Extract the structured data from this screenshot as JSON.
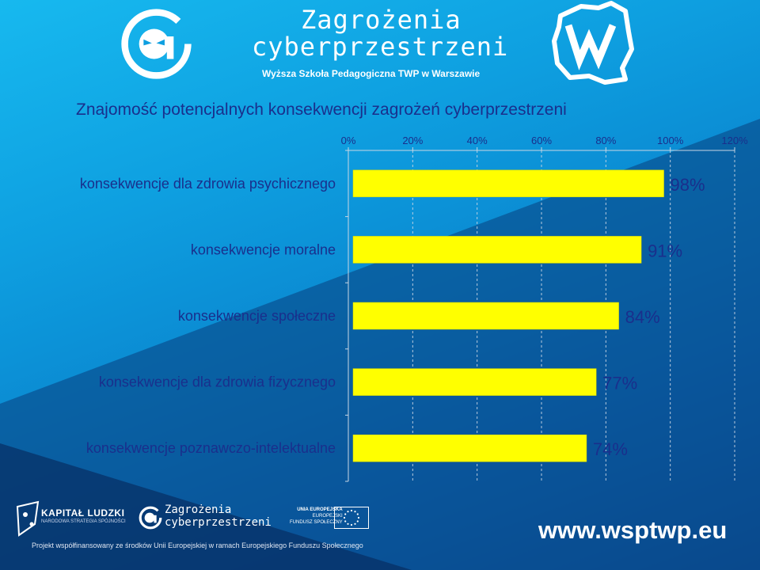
{
  "header": {
    "brand_line1": "Zagrożenia",
    "brand_line2": "cyberprzestrzeni",
    "school": "Wyższa Szkoła Pedagogiczna TWP w Warszawie"
  },
  "colors": {
    "bar": "#ffff00",
    "title": "#1a2f8c",
    "grid": "#c9d6e4"
  },
  "chart_data": {
    "type": "bar",
    "orientation": "horizontal",
    "title": "Znajomość potencjalnych konsekwencji zagrożeń cyberprzestrzeni",
    "categories": [
      "konsekwencje dla zdrowia psychicznego",
      "konsekwencje moralne",
      "konsekwencje społeczne",
      "konsekwencje dla zdrowia fizycznego",
      "konsekwencje poznawczo-intelektualne"
    ],
    "values": [
      98,
      91,
      84,
      77,
      74
    ],
    "value_labels": [
      "98%",
      "91%",
      "84%",
      "77%",
      "74%"
    ],
    "xlim": [
      0,
      120
    ],
    "ticks": [
      0,
      20,
      40,
      60,
      80,
      100,
      120
    ],
    "tick_labels": [
      "0%",
      "20%",
      "40%",
      "60%",
      "80%",
      "100%",
      "120%"
    ],
    "axis_position": "top",
    "grid": true
  },
  "footer": {
    "kapital": "KAPITAŁ LUDZKI",
    "kapital_sub": "NARODOWA STRATEGIA SPÓJNOŚCI",
    "mini_line1": "Zagrożenia",
    "mini_line2": "cyberprzestrzeni",
    "ue_line1": "UNIA EUROPEJSKA",
    "ue_line2": "EUROPEJSKI",
    "ue_line3": "FUNDUSZ SPOŁECZNY",
    "project": "Projekt współfinansowany ze środków Unii Europejskiej w ramach Europejskiego Funduszu Społecznego",
    "website": "www.wsptwp.eu"
  }
}
